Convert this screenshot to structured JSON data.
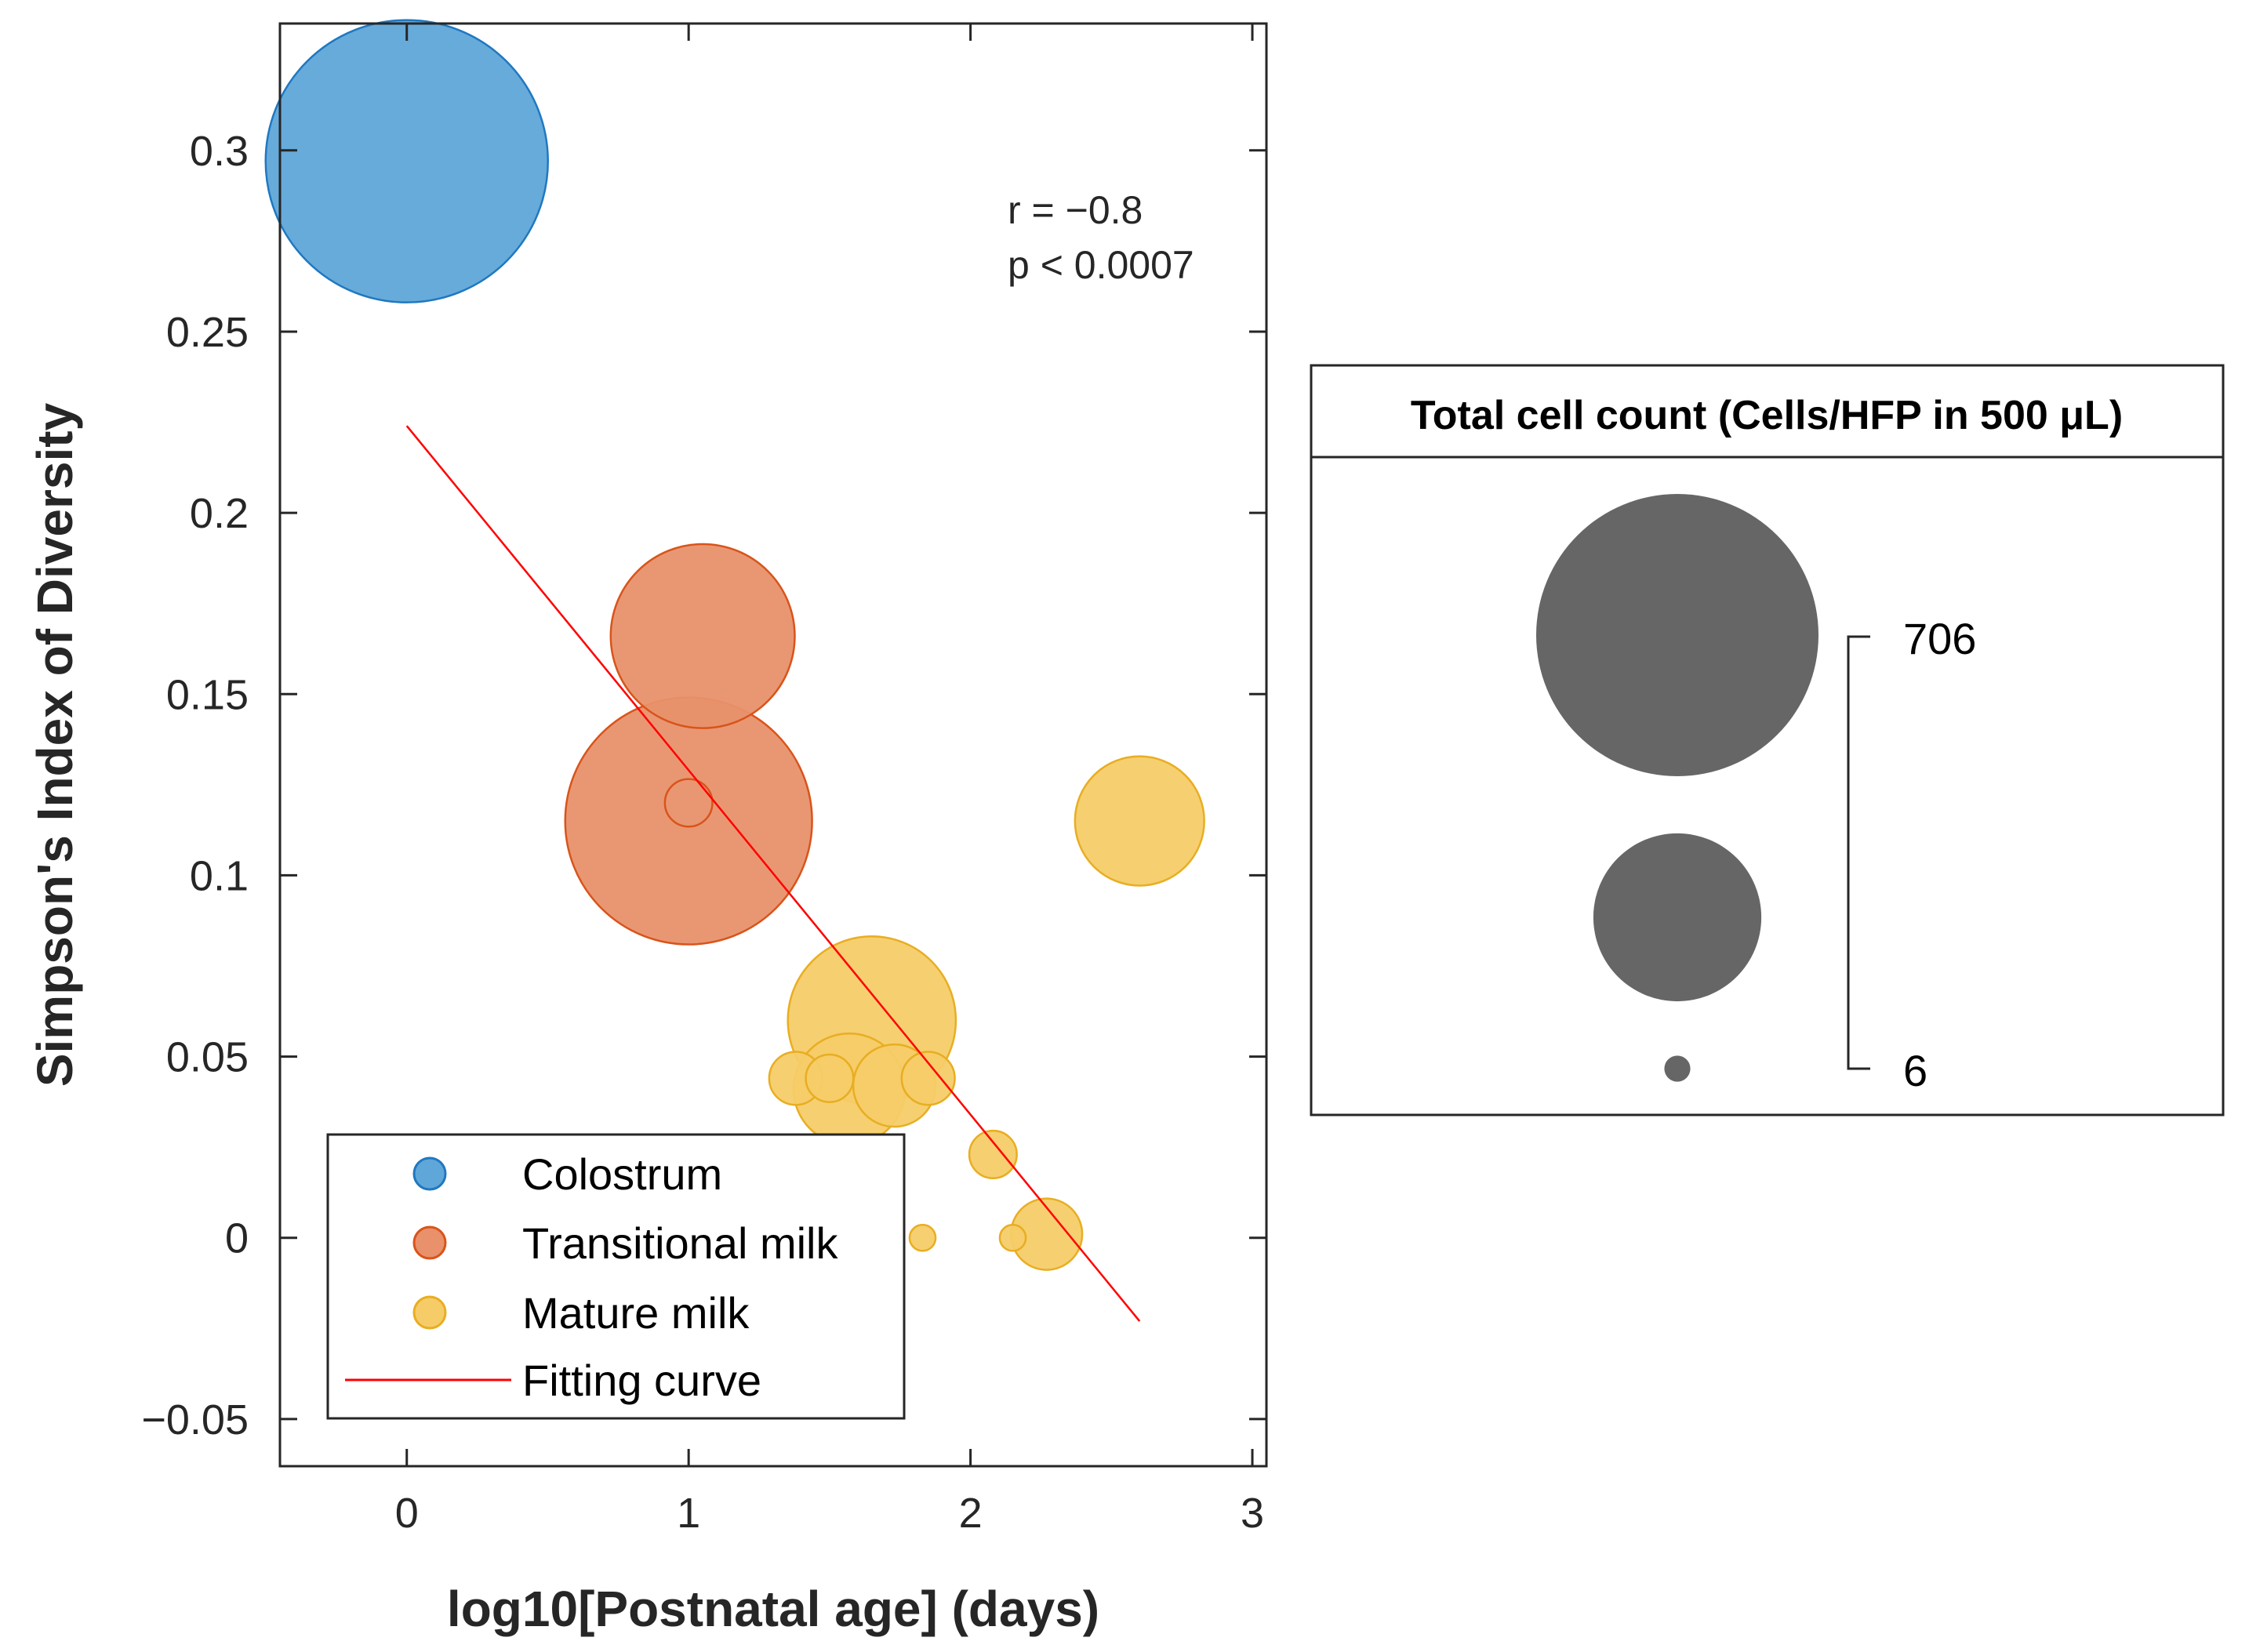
{
  "colors": {
    "colostrum": "#5fa7d8",
    "colostrum_edge": "#1f78c1",
    "transitional": "#e8916b",
    "transitional_edge": "#d9541a",
    "mature": "#f5cc68",
    "mature_edge": "#e8ae22",
    "fit": "#ff0000",
    "size_legend": "#666666"
  },
  "annotation": {
    "r_text": "r = −0.8",
    "p_text": "p < 0.0007"
  },
  "legend": {
    "items": [
      {
        "label": "Colostrum",
        "group": "colostrum"
      },
      {
        "label": "Transitional milk",
        "group": "transitional"
      },
      {
        "label": "Mature milk",
        "group": "mature"
      },
      {
        "label": "Fitting curve",
        "group": "fit"
      }
    ]
  },
  "size_legend": {
    "title": "Total cell count (Cells/HFP in 500 μL)",
    "max_label": "706",
    "min_label": "6",
    "max_value": 706,
    "min_value": 6,
    "mid_value": 250
  },
  "chart_data": {
    "type": "scatter",
    "subtype": "bubble",
    "xlabel": "log10[Postnatal age] (days)",
    "ylabel": "Simpson's Index of Diversity",
    "xlim": [
      -0.45,
      3.05
    ],
    "ylim": [
      -0.063,
      0.335
    ],
    "xticks": [
      0,
      1,
      2,
      3
    ],
    "yticks": [
      -0.05,
      0,
      0.05,
      0.1,
      0.15,
      0.2,
      0.25,
      0.3
    ],
    "ytick_labels": [
      "−0.05",
      "0",
      "0.05",
      "0.1",
      "0.15",
      "0.2",
      "0.25",
      "0.3"
    ],
    "series": [
      {
        "name": "Colostrum",
        "group": "colostrum",
        "points": [
          {
            "x": 0.0,
            "y": 0.297,
            "cell_count": 706
          }
        ]
      },
      {
        "name": "Transitional milk",
        "group": "transitional",
        "points": [
          {
            "x": 1.05,
            "y": 0.166,
            "cell_count": 300
          },
          {
            "x": 1.0,
            "y": 0.115,
            "cell_count": 540
          },
          {
            "x": 1.0,
            "y": 0.12,
            "cell_count": 20
          }
        ]
      },
      {
        "name": "Mature milk",
        "group": "mature",
        "points": [
          {
            "x": 2.6,
            "y": 0.115,
            "cell_count": 148
          },
          {
            "x": 1.65,
            "y": 0.06,
            "cell_count": 250
          },
          {
            "x": 1.38,
            "y": 0.044,
            "cell_count": 25
          },
          {
            "x": 1.5,
            "y": 0.044,
            "cell_count": 20
          },
          {
            "x": 1.57,
            "y": 0.041,
            "cell_count": 110
          },
          {
            "x": 1.73,
            "y": 0.042,
            "cell_count": 60
          },
          {
            "x": 1.85,
            "y": 0.044,
            "cell_count": 25
          },
          {
            "x": 2.08,
            "y": 0.023,
            "cell_count": 20
          },
          {
            "x": 1.83,
            "y": 0.0,
            "cell_count": 6
          },
          {
            "x": 2.15,
            "y": 0.0,
            "cell_count": 6
          },
          {
            "x": 2.27,
            "y": 0.001,
            "cell_count": 45
          }
        ]
      }
    ],
    "fit_line": {
      "name": "Fitting curve",
      "x": [
        0.0,
        2.6
      ],
      "y": [
        0.224,
        -0.023
      ]
    },
    "r": -0.8,
    "p": "< 0.0007"
  }
}
